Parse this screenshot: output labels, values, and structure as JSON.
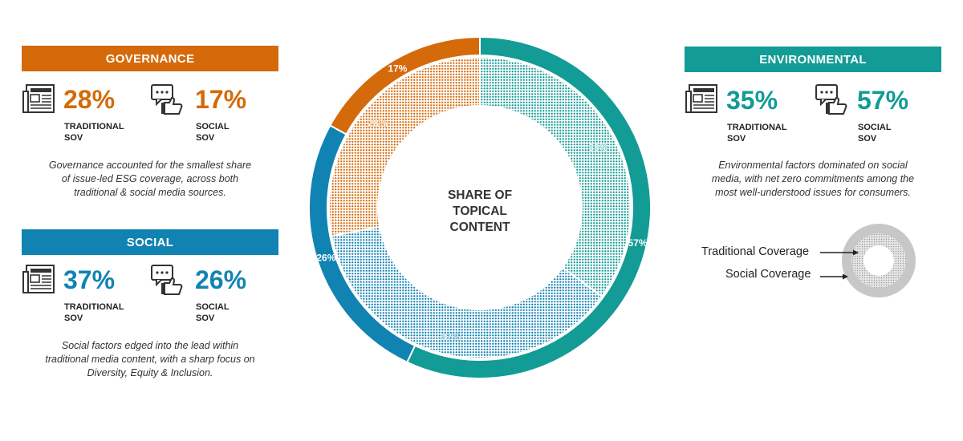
{
  "chart_data": {
    "type": "pie",
    "title": "SHARE OF TOPICAL CONTENT",
    "series": [
      {
        "name": "Traditional Coverage",
        "ring": "inner",
        "categories": [
          "Environmental",
          "Social",
          "Governance"
        ],
        "values": [
          35,
          37,
          28
        ],
        "labels": [
          "35%",
          "37%",
          "28%"
        ]
      },
      {
        "name": "Social Coverage",
        "ring": "outer",
        "categories": [
          "Environmental",
          "Social",
          "Governance"
        ],
        "values": [
          57,
          26,
          17
        ],
        "labels": [
          "57%",
          "26%",
          "17%"
        ]
      }
    ],
    "colors": {
      "Environmental": "#139b96",
      "Social": "#1183b3",
      "Governance": "#d46a0a"
    }
  },
  "center_title": [
    "SHARE OF",
    "TOPICAL",
    "CONTENT"
  ],
  "governance": {
    "title": "GOVERNANCE",
    "color": "#d46a0a",
    "traditional_pct": "28%",
    "traditional_label": [
      "TRADITIONAL",
      "SOV"
    ],
    "social_pct": "17%",
    "social_label": [
      "SOCIAL",
      "SOV"
    ],
    "description": [
      "Governance accounted for the smallest share",
      "of issue-led ESG coverage, across both",
      "traditional & social media sources."
    ]
  },
  "social": {
    "title": "SOCIAL",
    "color": "#1183b3",
    "traditional_pct": "37%",
    "traditional_label": [
      "TRADITIONAL",
      "SOV"
    ],
    "social_pct": "26%",
    "social_label": [
      "SOCIAL",
      "SOV"
    ],
    "description": [
      "Social factors edged into the lead within",
      "traditional media content, with a sharp focus on",
      "Diversity, Equity & Inclusion."
    ]
  },
  "environmental": {
    "title": "ENVIRONMENTAL",
    "color": "#139b96",
    "traditional_pct": "35%",
    "traditional_label": [
      "TRADITIONAL",
      "SOV"
    ],
    "social_pct": "57%",
    "social_label": [
      "SOCIAL",
      "SOV"
    ],
    "description": [
      "Environmental factors dominated on social",
      "media, with net zero commitments among the",
      "most well-understood issues for consumers."
    ]
  },
  "legend": {
    "traditional": "Traditional Coverage",
    "social": "Social Coverage"
  },
  "icons": {
    "traditional": "newspaper-icon",
    "social": "social-media-thumbs-up-icon"
  }
}
